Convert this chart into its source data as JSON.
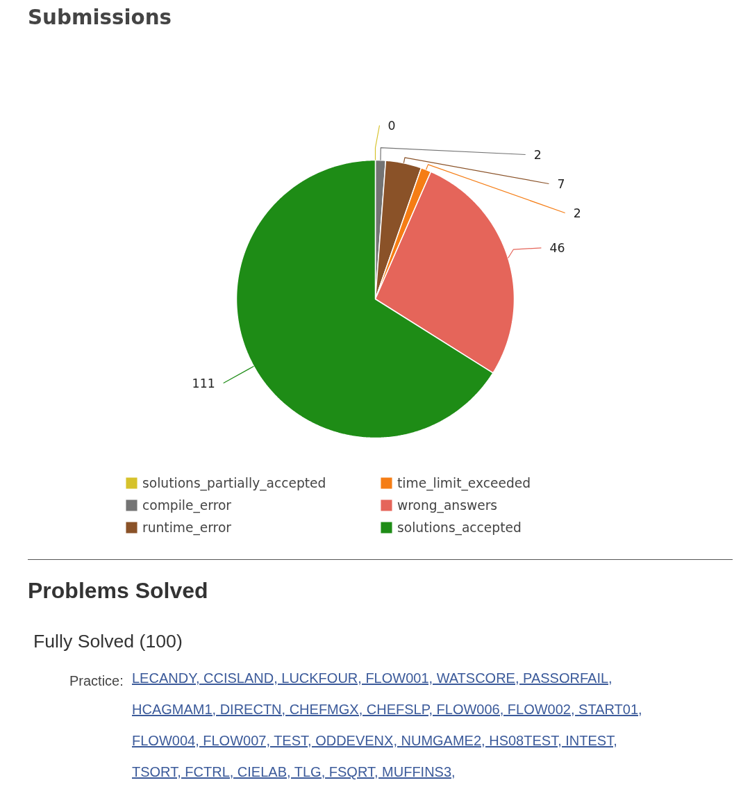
{
  "chart_data": {
    "type": "pie",
    "title": "Submissions",
    "categories": [
      "solutions_partially_accepted",
      "compile_error",
      "runtime_error",
      "time_limit_exceeded",
      "wrong_answers",
      "solutions_accepted"
    ],
    "values": [
      0,
      2,
      7,
      2,
      46,
      111
    ],
    "colors": [
      "#d6c22b",
      "#747474",
      "#8a5228",
      "#f57d15",
      "#e5655a",
      "#1e8c16"
    ],
    "value_labels": [
      "0",
      "2",
      "7",
      "2",
      "46",
      "111"
    ],
    "legend": "bottom",
    "annotations": [
      "Problems Solved",
      "Fully Solved (100)",
      "Practice:",
      "LECANDY, CCISLAND, LUCKFOUR, FLOW001, WATSCORE, PASSORFAIL, HCAGMAM1, DIRECTN, CHEFMGX, CHEFSLP, FLOW006, FLOW002, START01, FLOW004, FLOW007, TEST, ODDEVENX, NUMGAME2, HS08TEST, INTEST, TSORT, FCTRL, CIELAB, TLG, FSQRT, MUFFINS3,"
    ]
  }
}
